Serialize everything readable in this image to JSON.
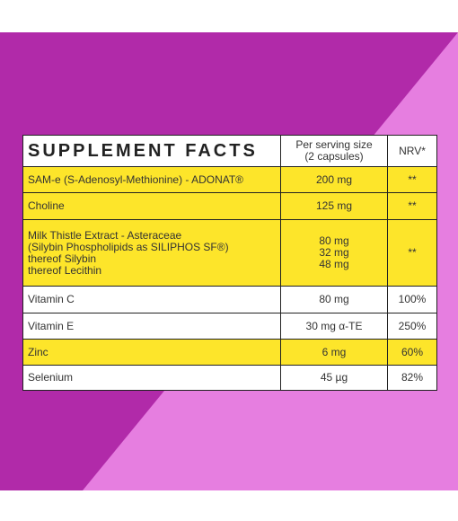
{
  "table": {
    "header": [
      [
        "SUPPLEMENT FACTS"
      ],
      [
        "Per serving size",
        "(2 capsules)"
      ],
      [
        "NRV*"
      ]
    ],
    "rows": [
      {
        "highlight": true,
        "cells": [
          [
            "SAM-e (S-Adenosyl-Methionine) - ADONAT®"
          ],
          [
            "200 mg"
          ],
          [
            "**"
          ]
        ]
      },
      {
        "highlight": true,
        "cells": [
          [
            "Choline"
          ],
          [
            "125 mg"
          ],
          [
            "**"
          ]
        ]
      },
      {
        "highlight": true,
        "cells": [
          [
            "Milk Thistle Extract - Asteraceae",
            "(Silybin Phospholipids as SILIPHOS SF®)",
            "thereof Silybin",
            "thereof Lecithin"
          ],
          [
            "80 mg",
            "32 mg",
            "48 mg"
          ],
          [
            "**"
          ]
        ]
      },
      {
        "highlight": false,
        "cells": [
          [
            "Vitamin C"
          ],
          [
            "80 mg"
          ],
          [
            "100%"
          ]
        ]
      },
      {
        "highlight": false,
        "cells": [
          [
            "Vitamin E"
          ],
          [
            "30 mg α-TE"
          ],
          [
            "250%"
          ]
        ]
      },
      {
        "highlight": true,
        "cells": [
          [
            "Zinc"
          ],
          [
            "6 mg"
          ],
          [
            "60%"
          ]
        ]
      },
      {
        "highlight": false,
        "cells": [
          [
            "Selenium"
          ],
          [
            "45 µg"
          ],
          [
            "82%"
          ]
        ]
      }
    ]
  }
}
